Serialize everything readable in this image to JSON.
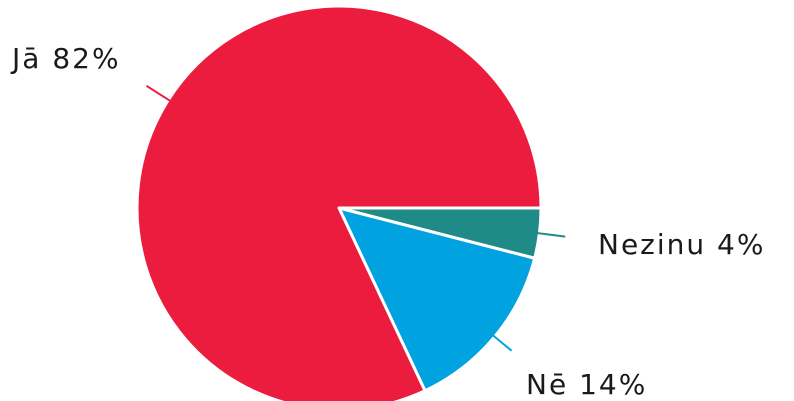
{
  "chart_data": {
    "type": "pie",
    "slices": [
      {
        "label": "Nezinu",
        "value": 4,
        "color": "#1f8a87",
        "text": "Nezinu 4%"
      },
      {
        "label": "Nē",
        "value": 14,
        "color": "#00a3e0",
        "text": "Nē 14%"
      },
      {
        "label": "Jā",
        "value": 82,
        "color": "#ec1c3e",
        "text": "Jā 82%"
      }
    ],
    "start": "3 o'clock, clockwise"
  }
}
